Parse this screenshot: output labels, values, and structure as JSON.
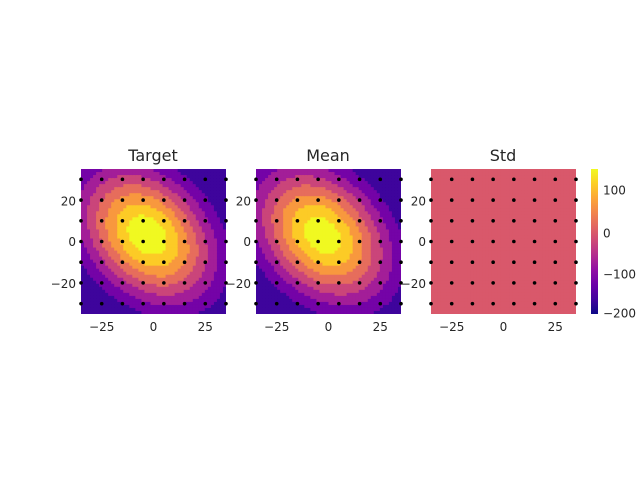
{
  "chart_data": [
    {
      "type": "heatmap",
      "title": "Target",
      "xlim": [
        -35,
        35
      ],
      "ylim": [
        -35,
        35
      ],
      "xticks": [
        -25,
        0,
        25
      ],
      "yticks": [
        -20,
        0,
        20
      ],
      "field": "gaussian-bump",
      "center": [
        -3,
        3
      ],
      "peak": 185,
      "min_corner": -200,
      "shape": "tilted-ellipse (major axis from top-left to bottom-right)",
      "contour_levels": [
        -200,
        -150,
        -100,
        -50,
        0,
        50,
        100,
        150,
        200
      ],
      "sample_points": {
        "x": [
          -35,
          -25,
          -15,
          -5,
          5,
          15,
          25,
          35
        ],
        "y": [
          -30,
          -20,
          -10,
          0,
          10,
          20,
          30
        ]
      }
    },
    {
      "type": "heatmap",
      "title": "Mean",
      "xlim": [
        -35,
        35
      ],
      "ylim": [
        -35,
        35
      ],
      "xticks": [
        -25,
        0,
        25
      ],
      "yticks": [
        -20,
        0,
        20
      ],
      "field": "gaussian-bump",
      "center": [
        -3,
        3
      ],
      "peak": 180,
      "min_corner": -200,
      "shape": "tilted-ellipse (major axis from top-left to bottom-right)",
      "contour_levels": [
        -200,
        -150,
        -100,
        -50,
        0,
        50,
        100,
        150,
        200
      ],
      "sample_points": {
        "x": [
          -35,
          -25,
          -15,
          -5,
          5,
          15,
          25,
          35
        ],
        "y": [
          -30,
          -20,
          -10,
          0,
          10,
          20,
          30
        ]
      }
    },
    {
      "type": "heatmap",
      "title": "Std",
      "xlim": [
        -35,
        35
      ],
      "ylim": [
        -35,
        35
      ],
      "xticks": [
        -25,
        0,
        25
      ],
      "yticks": [
        -20,
        0,
        20
      ],
      "field": "constant",
      "value": 0,
      "sample_points": {
        "x": [
          -35,
          -25,
          -15,
          -5,
          5,
          15,
          25,
          35
        ],
        "y": [
          -30,
          -20,
          -10,
          0,
          10,
          20,
          30
        ]
      }
    }
  ],
  "colorbar": {
    "colormap": "plasma",
    "range": [
      -210,
      165
    ],
    "ticks": [
      100,
      0,
      -100,
      -200
    ],
    "tick_labels": [
      "100",
      "0",
      "−100",
      "−200"
    ]
  },
  "tick_labels": {
    "x": [
      "−25",
      "0",
      "25"
    ],
    "y": [
      "20",
      "0",
      "−20"
    ]
  },
  "colors": {
    "background": "#ffffff",
    "point": "#000000",
    "text": "#262626"
  }
}
